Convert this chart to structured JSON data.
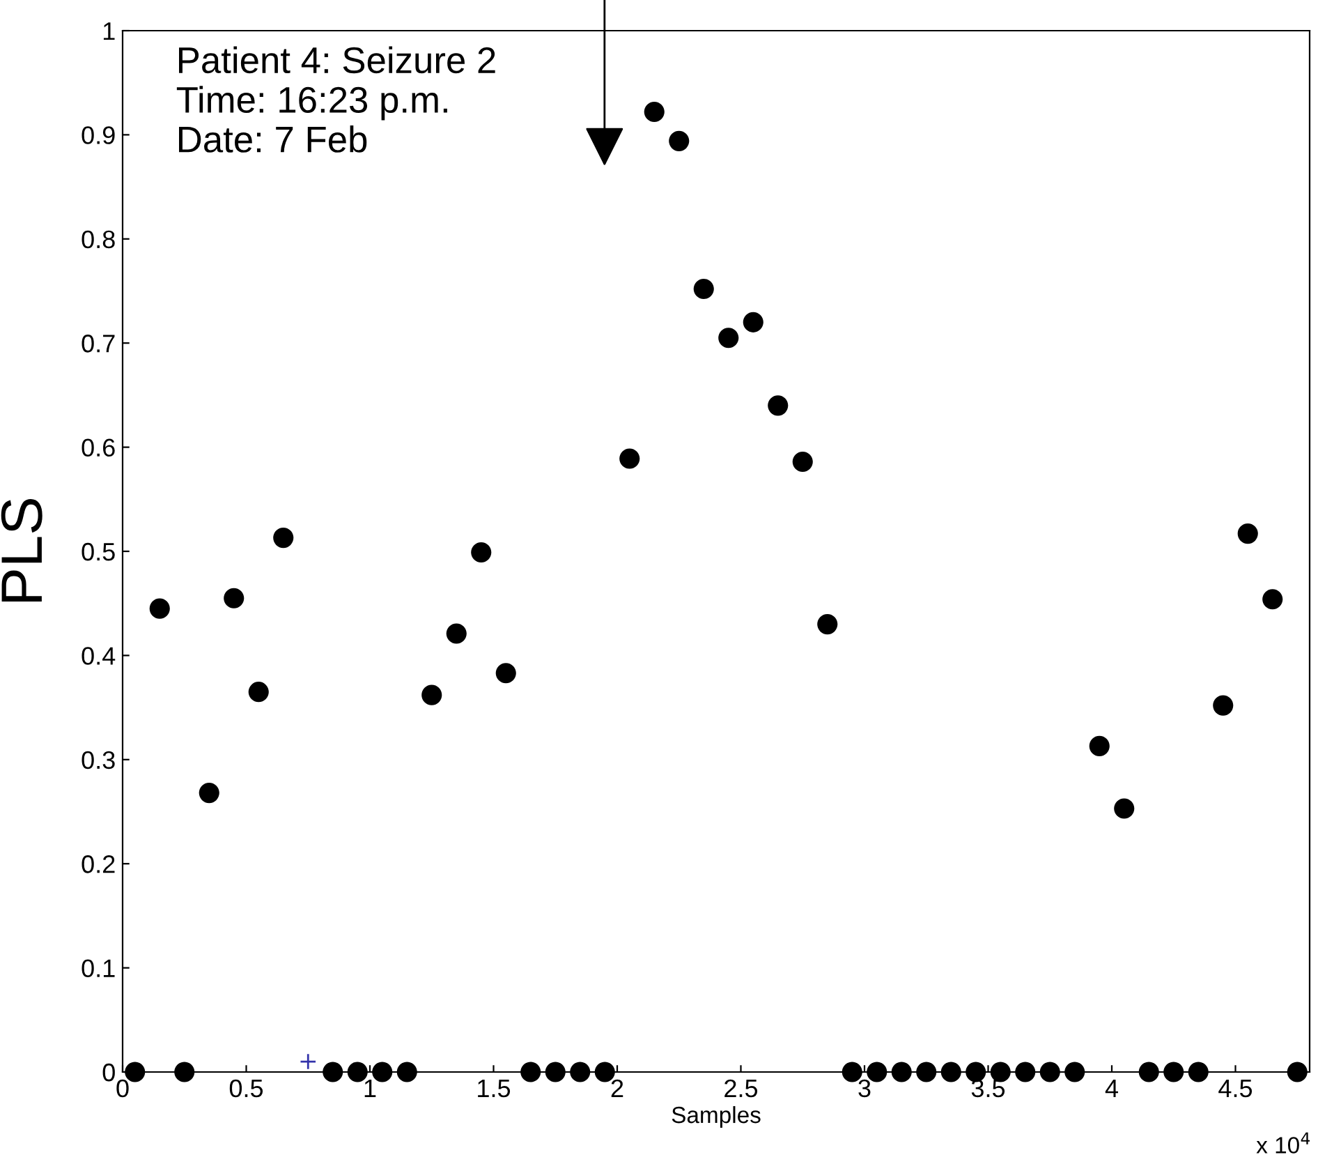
{
  "chart_data": {
    "type": "scatter",
    "xlabel": "Samples",
    "ylabel": "PLS",
    "series": [
      {
        "color": "#000000",
        "marker": "circle",
        "x": [
          0.05,
          0.15,
          0.25,
          0.35,
          0.45,
          0.55,
          0.65,
          0.85,
          0.95,
          1.05,
          1.15,
          1.25,
          1.35,
          1.45,
          1.55,
          1.65,
          1.75,
          1.85,
          1.95,
          2.05,
          2.15,
          2.25,
          2.35,
          2.45,
          2.55,
          2.65,
          2.75,
          2.85,
          2.95,
          3.05,
          3.15,
          3.25,
          3.35,
          3.45,
          3.55,
          3.65,
          3.75,
          3.85,
          3.95,
          4.05,
          4.15,
          4.25,
          4.35,
          4.45,
          4.55,
          4.65,
          4.75
        ],
        "values": [
          0,
          0.445,
          0,
          0.268,
          0.455,
          0.365,
          0.513,
          0,
          0,
          0,
          0,
          0.362,
          0.421,
          0.499,
          0.383,
          0,
          0,
          0,
          0,
          0.589,
          0.922,
          0.894,
          0.752,
          0.705,
          0.72,
          0.64,
          0.586,
          0.43,
          0,
          0,
          0,
          0,
          0,
          0,
          0,
          0,
          0,
          0,
          0.313,
          0.253,
          0,
          0,
          0,
          0.352,
          0.517,
          0.454,
          0
        ]
      },
      {
        "color": "#3333aa",
        "marker": "cross",
        "x": [
          0.75
        ],
        "values": [
          0.01
        ]
      }
    ],
    "xlim": [
      0,
      4.8
    ],
    "xticks": [
      0,
      0.5,
      1,
      1.5,
      2,
      2.5,
      3,
      3.5,
      4,
      4.5
    ],
    "ylim": [
      0,
      1
    ],
    "yticks": [
      0,
      0.1,
      0.2,
      0.3,
      0.4,
      0.5,
      0.6,
      0.7,
      0.8,
      0.9,
      1
    ],
    "grid": false,
    "legend": false,
    "annotations": [
      "Patient 4: Seizure 2\nTime: 16:23 p.m.\nDate: 7 Feb",
      "x 10$^{4}$"
    ]
  }
}
